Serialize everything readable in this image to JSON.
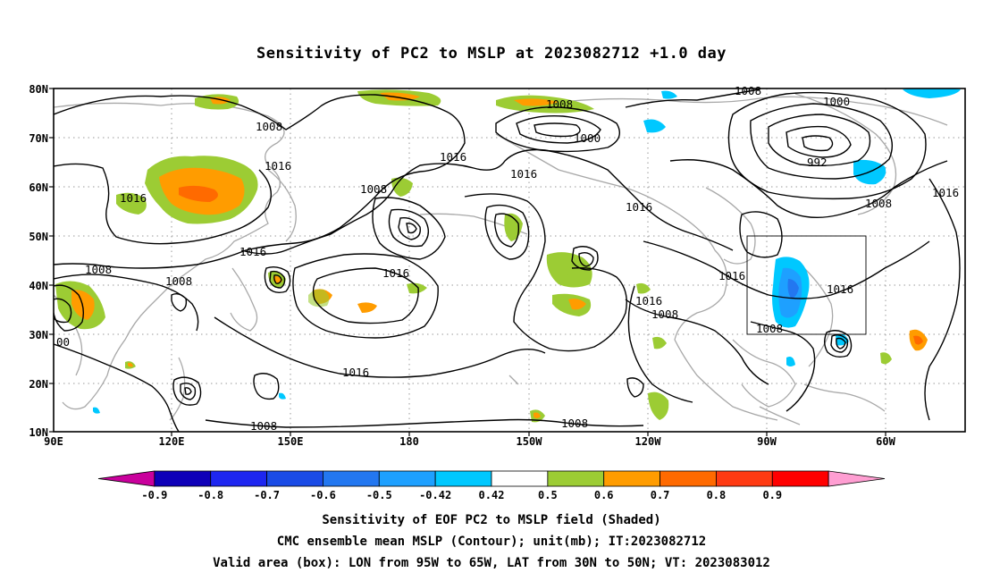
{
  "title": "Sensitivity of PC2 to MSLP at 2023082712 +1.0 day",
  "lat_labels": [
    "80N",
    "70N",
    "60N",
    "50N",
    "40N",
    "30N",
    "20N",
    "10N"
  ],
  "lon_labels": [
    "90E",
    "120E",
    "150E",
    "180",
    "150W",
    "120W",
    "90W",
    "60W"
  ],
  "contour_labels": [
    "1008",
    "1016",
    "1016",
    "1008",
    "1008",
    "1016",
    "1008",
    "1000",
    "1016",
    "1016",
    "1016",
    "1008",
    "1000",
    "992",
    "1016",
    "1008",
    "1016",
    "1016",
    "1016",
    "1008",
    "1008",
    "1008",
    "1008",
    "1016",
    "00"
  ],
  "colorbar": {
    "labels": [
      "-0.9",
      "-0.8",
      "-0.7",
      "-0.6",
      "-0.5",
      "-0.42",
      "0.42",
      "0.5",
      "0.6",
      "0.7",
      "0.8",
      "0.9"
    ],
    "colors": [
      "#c9009c",
      "#0f00b8",
      "#1e26f0",
      "#1a4be6",
      "#2377f0",
      "#1ea0ff",
      "#00c8ff",
      "#ffffff",
      "#9ccc34",
      "#ff9c00",
      "#ff6a00",
      "#ff3a12",
      "#ff0000",
      "#ff9ed2"
    ]
  },
  "captions": [
    "Sensitivity of EOF PC2 to MSLP field (Shaded)",
    "CMC ensemble mean MSLP (Contour); unit(mb); IT:2023082712",
    "Valid area (box): LON from 95W to 65W, LAT from 30N to 50N; VT: 2023083012"
  ],
  "map_data": {
    "lon_range": [
      90,
      305
    ],
    "lat_range": [
      10,
      80
    ],
    "valid_box": {
      "lon": [
        265,
        295
      ],
      "lat": [
        30,
        50
      ]
    },
    "shading_colors": {
      "positive_low": "#9ccc34",
      "positive_mid": "#ff9c00",
      "positive_high": "#ff6a00",
      "negative_low": "#00c8ff",
      "negative_mid": "#1ea0ff",
      "negative_high": "#2377f0"
    },
    "coast_color": "#a8a8a8",
    "contour_color": "#000000",
    "contour_interval_mb": 8
  }
}
